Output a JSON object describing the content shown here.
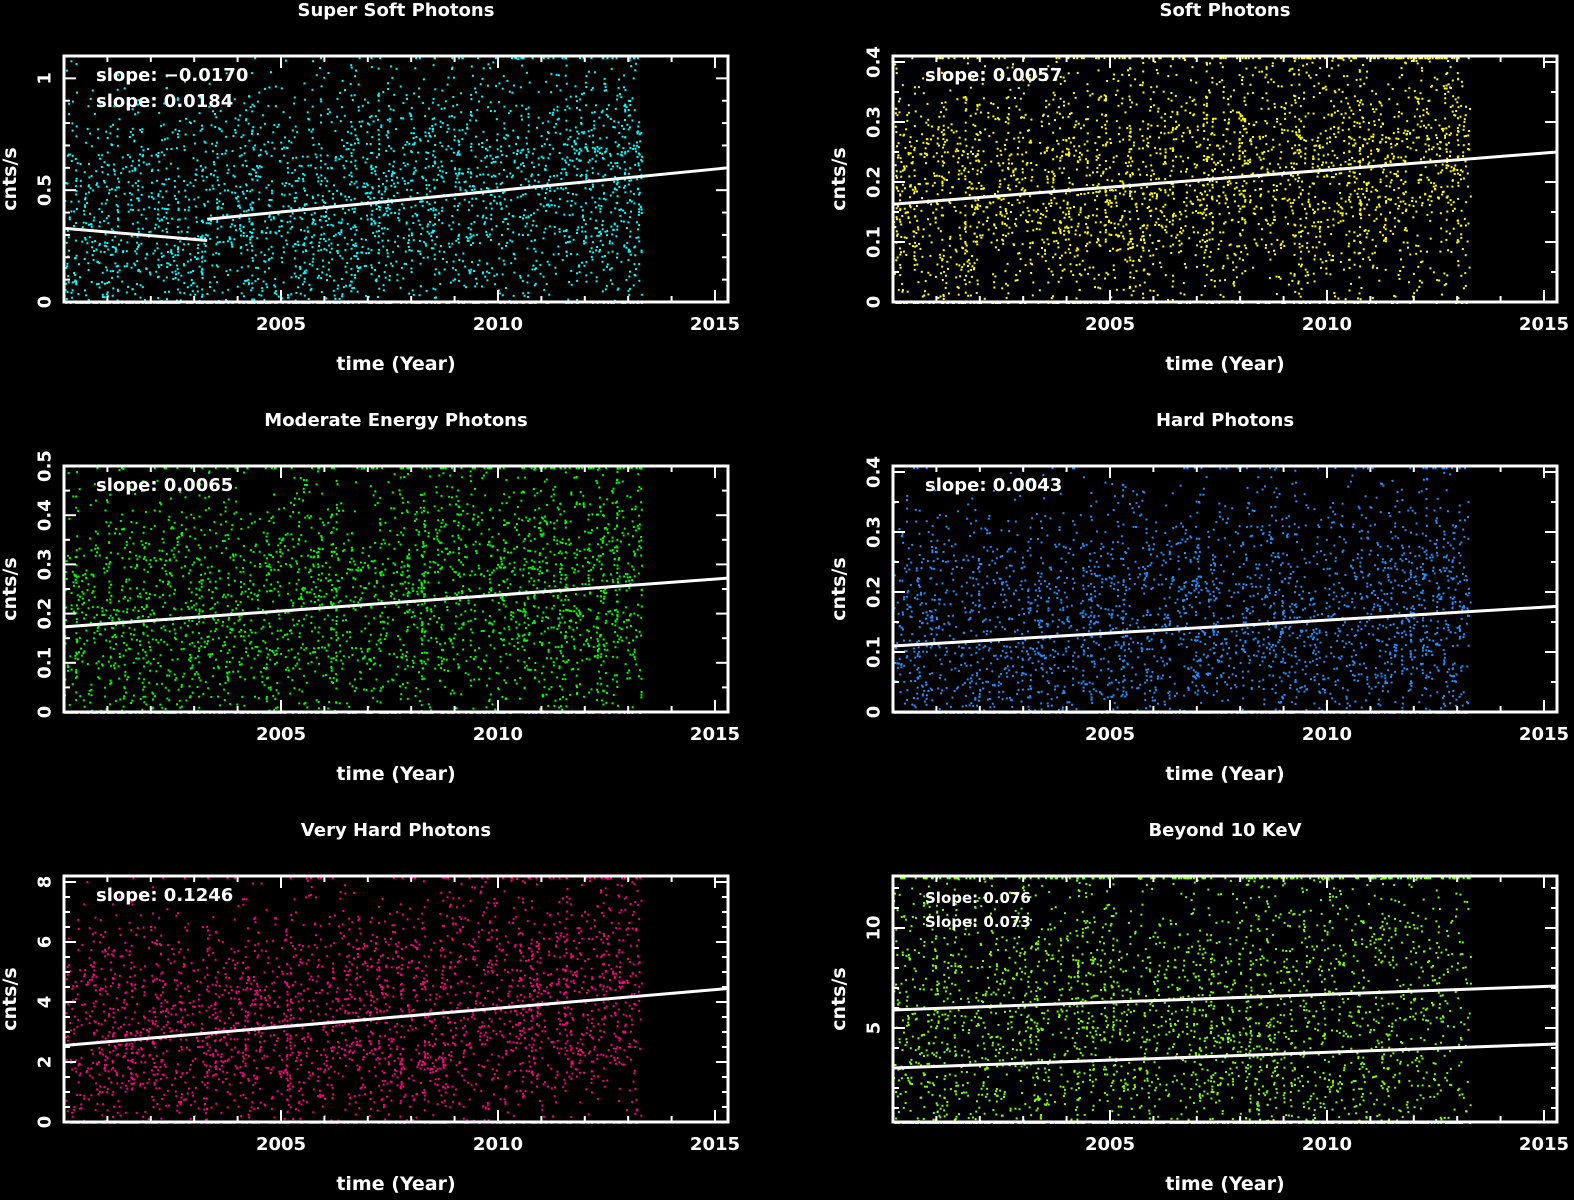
{
  "chart_data": [
    {
      "type": "scatter",
      "title": "Super Soft Photons",
      "xlabel": "time (Year)",
      "ylabel": "cnts/s",
      "xlim": [
        2000.0,
        2015.3
      ],
      "ylim": [
        0,
        1.1
      ],
      "xticks": [
        2005,
        2010,
        2015
      ],
      "yticks": [
        0,
        0.5,
        1
      ],
      "yticklabels": [
        "0",
        "0.5",
        "1"
      ],
      "color": "#00ffff",
      "data_x_range": [
        2000.0,
        2013.3
      ],
      "annotations": [
        "slope: −0.0170",
        "slope: 0.0184"
      ],
      "fit_lines": [
        {
          "x": [
            2000.0,
            2003.3
          ],
          "y": [
            0.33,
            0.275
          ]
        },
        {
          "x": [
            2003.3,
            2015.3
          ],
          "y": [
            0.37,
            0.6
          ]
        }
      ],
      "grid": false
    },
    {
      "type": "scatter",
      "title": "Soft Photons",
      "xlabel": "time (Year)",
      "ylabel": "cnts/s",
      "xlim": [
        2000.0,
        2015.3
      ],
      "ylim": [
        0,
        0.41
      ],
      "xticks": [
        2005,
        2010,
        2015
      ],
      "yticks": [
        0,
        0.1,
        0.2,
        0.3,
        0.4
      ],
      "yticklabels": [
        "0",
        "0.1",
        "0.2",
        "0.3",
        "0.4"
      ],
      "color": "#ffff00",
      "data_x_range": [
        2000.0,
        2013.3
      ],
      "annotations": [
        "slope: 0.0057"
      ],
      "fit_lines": [
        {
          "x": [
            2000.0,
            2015.3
          ],
          "y": [
            0.163,
            0.25
          ]
        }
      ],
      "grid": false
    },
    {
      "type": "scatter",
      "title": "Moderate Energy Photons",
      "xlabel": "time (Year)",
      "ylabel": "cnts/s",
      "xlim": [
        2000.0,
        2015.3
      ],
      "ylim": [
        0,
        0.5
      ],
      "xticks": [
        2005,
        2010,
        2015
      ],
      "yticks": [
        0,
        0.1,
        0.2,
        0.3,
        0.4,
        0.5
      ],
      "yticklabels": [
        "0",
        "0.1",
        "0.2",
        "0.3",
        "0.4",
        "0.5"
      ],
      "color": "#00ff00",
      "data_x_range": [
        2000.0,
        2013.3
      ],
      "annotations": [
        "slope: 0.0065"
      ],
      "fit_lines": [
        {
          "x": [
            2000.0,
            2015.3
          ],
          "y": [
            0.173,
            0.272
          ]
        }
      ],
      "grid": false
    },
    {
      "type": "scatter",
      "title": "Hard Photons",
      "xlabel": "time (Year)",
      "ylabel": "cnts/s",
      "xlim": [
        2000.0,
        2015.3
      ],
      "ylim": [
        0,
        0.41
      ],
      "xticks": [
        2005,
        2010,
        2015
      ],
      "yticks": [
        0,
        0.1,
        0.2,
        0.3,
        0.4
      ],
      "yticklabels": [
        "0",
        "0.1",
        "0.2",
        "0.3",
        "0.4"
      ],
      "color": "#1e8fff",
      "data_x_range": [
        2000.0,
        2013.3
      ],
      "annotations": [
        "slope: 0.0043"
      ],
      "fit_lines": [
        {
          "x": [
            2000.0,
            2015.3
          ],
          "y": [
            0.11,
            0.176
          ]
        }
      ],
      "grid": false
    },
    {
      "type": "scatter",
      "title": "Very Hard  Photons",
      "xlabel": "time (Year)",
      "ylabel": "cnts/s",
      "xlim": [
        2000.0,
        2015.3
      ],
      "ylim": [
        0,
        8.2
      ],
      "xticks": [
        2005,
        2010,
        2015
      ],
      "yticks": [
        0,
        2,
        4,
        6,
        8
      ],
      "yticklabels": [
        "0",
        "2",
        "4",
        "6",
        "8"
      ],
      "color": "#ff0080",
      "data_x_range": [
        2000.0,
        2013.3
      ],
      "annotations": [
        "slope: 0.1246"
      ],
      "fit_lines": [
        {
          "x": [
            2000.0,
            2015.3
          ],
          "y": [
            2.55,
            4.45
          ]
        }
      ],
      "grid": false
    },
    {
      "type": "scatter",
      "title": "Beyond 10 KeV",
      "xlabel": "time (Year)",
      "ylabel": "cnts/s",
      "xlim": [
        2000.0,
        2015.3
      ],
      "ylim": [
        0.3,
        12.6
      ],
      "xticks": [
        2005,
        2010,
        2015
      ],
      "yticks": [
        5,
        10
      ],
      "yticklabels": [
        "5",
        "10"
      ],
      "color": "#80ff00",
      "data_x_range": [
        2000.0,
        2013.3
      ],
      "annotations": [
        "Slope: 0.076",
        "Slope: 0.073"
      ],
      "fit_lines": [
        {
          "x": [
            2000.0,
            2015.3
          ],
          "y": [
            5.9,
            7.1
          ]
        },
        {
          "x": [
            2000.0,
            2015.3
          ],
          "y": [
            3.0,
            4.2
          ]
        }
      ],
      "grid": false
    }
  ]
}
